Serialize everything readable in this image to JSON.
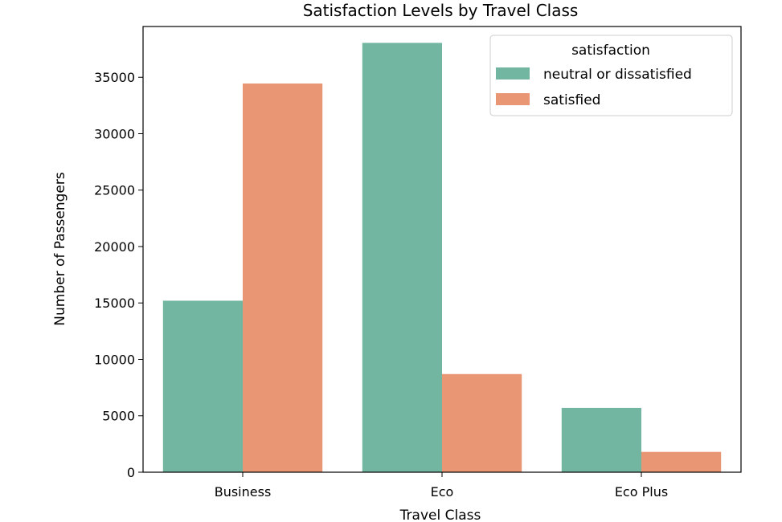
{
  "chart_data": {
    "type": "bar",
    "title": "Satisfaction Levels by Travel Class",
    "xlabel": "Travel Class",
    "ylabel": "Number of Passengers",
    "categories": [
      "Business",
      "Eco",
      "Eco Plus"
    ],
    "series": [
      {
        "name": "neutral or dissatisfied",
        "values": [
          15200,
          38050,
          5700
        ],
        "color": "#72b6a1"
      },
      {
        "name": "satisfied",
        "values": [
          34450,
          8700,
          1800
        ],
        "color": "#e99675"
      }
    ],
    "ylim": [
      0,
      39500
    ],
    "yticks": [
      0,
      5000,
      10000,
      15000,
      20000,
      25000,
      30000,
      35000
    ],
    "grid": false,
    "legend": {
      "title": "satisfaction",
      "position": "upper right"
    }
  }
}
